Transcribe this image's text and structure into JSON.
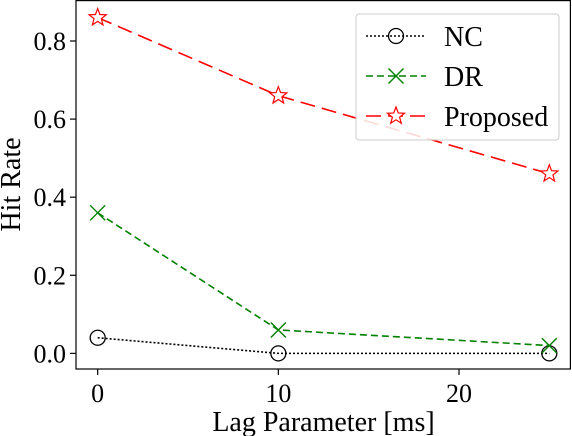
{
  "chart_data": {
    "type": "line",
    "title": "",
    "xlabel": "Lag Parameter [ms]",
    "ylabel": "Hit Rate",
    "x": [
      0,
      10,
      25
    ],
    "xlim": [
      -1.2,
      26.2
    ],
    "ylim": [
      -0.04,
      0.905
    ],
    "xticks": [
      0,
      10,
      20
    ],
    "xtick_labels": [
      "0",
      "10",
      "20"
    ],
    "yticks": [
      0.0,
      0.2,
      0.4,
      0.6,
      0.8
    ],
    "ytick_labels": [
      "0.0",
      "0.2",
      "0.4",
      "0.6",
      "0.8"
    ],
    "grid": false,
    "legend_position": "top-right",
    "series": [
      {
        "name": "NC",
        "values": [
          0.04,
          0.0,
          0.0
        ],
        "color": "#000000",
        "linestyle": "dotted",
        "marker": "circle"
      },
      {
        "name": "DR",
        "values": [
          0.36,
          0.06,
          0.02
        ],
        "color": "#008000",
        "linestyle": "dashed",
        "marker": "x"
      },
      {
        "name": "Proposed",
        "values": [
          0.86,
          0.66,
          0.46
        ],
        "color": "#ff0000",
        "linestyle": "longdash",
        "marker": "star"
      }
    ]
  }
}
